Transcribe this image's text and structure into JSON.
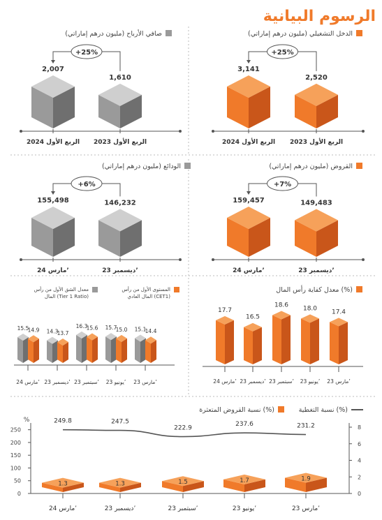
{
  "page_title": "الرسوم البيانية",
  "colors": {
    "orange": "#f07a2a",
    "orange_dark": "#c9561a",
    "orange_top": "#f6a15a",
    "gray": "#9a9a9a",
    "gray_dark": "#6f6f6f",
    "gray_top": "#cfcfcf",
    "title": "#f07a2a",
    "axis": "#555555",
    "line": "#555555"
  },
  "panels": {
    "net_profit": {
      "title": "صافي الأرباح (مليون درهم إماراتي)",
      "change": "+25%",
      "legend_color": "gray",
      "bars": [
        {
          "label": "الربع الأول 2024",
          "value": 2007,
          "value_text": "2,007"
        },
        {
          "label": "الربع الأول 2023",
          "value": 1610,
          "value_text": "1,610"
        }
      ]
    },
    "operating_income": {
      "title": "الدخل التشغيلي (مليون درهم إماراتي)",
      "change": "+25%",
      "legend_color": "orange",
      "bars": [
        {
          "label": "الربع الأول 2024",
          "value": 3141,
          "value_text": "3,141"
        },
        {
          "label": "الربع الأول 2023",
          "value": 2520,
          "value_text": "2,520"
        }
      ]
    },
    "deposits": {
      "title": "الودائع (مليون درهم إماراتي)",
      "change": "+6%",
      "legend_color": "gray",
      "bars": [
        {
          "label": "مارس 24’",
          "value": 155498,
          "value_text": "155,498"
        },
        {
          "label": "ديسمبر 23’",
          "value": 146232,
          "value_text": "146,232"
        }
      ]
    },
    "loans": {
      "title": "القروض (مليون درهم إماراتي)",
      "change": "+7%",
      "legend_color": "orange",
      "bars": [
        {
          "label": "مارس 24’",
          "value": 159457,
          "value_text": "159,457"
        },
        {
          "label": "ديسمبر 23’",
          "value": 149483,
          "value_text": "149,483"
        }
      ]
    },
    "tier1": {
      "legend_cet1": "المستوى الأول من رأس المال العادي (CET1)",
      "legend_tier1": "معدل الشق الأول من رأس المال (Tier 1 Ratio)",
      "categories": [
        "مارس 24’",
        "ديسمبر 23’",
        "سبتمبر 23’",
        "يونيو 23’",
        "مارس 23’"
      ]
    },
    "car": {
      "title": "معدل كفاية رأس المال (%)",
      "categories": [
        "مارس 24’",
        "ديسمبر 23’",
        "سبتمبر 23’",
        "يونيو 23’",
        "مارس 23’"
      ]
    },
    "coverage": {
      "legend_npl": "نسبة القروض المتعثرة (%)",
      "legend_cov": "نسبة التغطية (%)",
      "left_unit": "%",
      "categories": [
        "مارس 24’",
        "ديسمبر 23’",
        "سبتمبر 23’",
        "يونيو 23’",
        "مارس 23’"
      ],
      "left_ticks": [
        "0",
        "50",
        "100",
        "150",
        "200",
        "250"
      ],
      "right_ticks": [
        "0",
        "2",
        "4",
        "6",
        "8"
      ]
    }
  },
  "chart_data": [
    {
      "type": "bar",
      "title": "صافي الأرباح (مليون درهم إماراتي)",
      "categories": [
        "الربع الأول 2024",
        "الربع الأول 2023"
      ],
      "values": [
        2007,
        1610
      ]
    },
    {
      "type": "bar",
      "title": "الدخل التشغيلي (مليون درهم إماراتي)",
      "categories": [
        "الربع الأول 2024",
        "الربع الأول 2023"
      ],
      "values": [
        3141,
        2520
      ]
    },
    {
      "type": "bar",
      "title": "الودائع (مليون درهم إماراتي)",
      "categories": [
        "مارس 24’",
        "ديسمبر 23’"
      ],
      "values": [
        155498,
        146232
      ]
    },
    {
      "type": "bar",
      "title": "القروض (مليون درهم إماراتي)",
      "categories": [
        "مارس 24’",
        "ديسمبر 23’"
      ],
      "values": [
        159457,
        149483
      ]
    },
    {
      "type": "bar",
      "categories": [
        "مارس 24’",
        "ديسمبر 23’",
        "سبتمبر 23’",
        "يونيو 23’",
        "مارس 23’"
      ],
      "series": [
        {
          "name": "معدل الشق الأول من رأس المال (Tier 1 Ratio)",
          "values": [
            15.5,
            14.3,
            16.3,
            15.7,
            15.1
          ]
        },
        {
          "name": "المستوى الأول من رأس المال العادي (CET1)",
          "values": [
            14.9,
            13.7,
            15.6,
            15.0,
            14.4
          ]
        }
      ]
    },
    {
      "type": "bar",
      "title": "معدل كفاية رأس المال (%)",
      "categories": [
        "مارس 24’",
        "ديسمبر 23’",
        "سبتمبر 23’",
        "يونيو 23’",
        "مارس 23’"
      ],
      "values": [
        17.7,
        16.5,
        18.6,
        18.0,
        17.4
      ]
    },
    {
      "type": "bar",
      "categories": [
        "مارس 24’",
        "ديسمبر 23’",
        "سبتمبر 23’",
        "يونيو 23’",
        "مارس 23’"
      ],
      "series": [
        {
          "name": "نسبة التغطية (%)",
          "type": "line",
          "values": [
            249.8,
            247.5,
            222.9,
            237.6,
            231.2
          ]
        },
        {
          "name": "نسبة القروض المتعثرة (%)",
          "type": "bar",
          "values": [
            1.3,
            1.3,
            1.5,
            1.7,
            1.9
          ]
        }
      ],
      "ylim_left": [
        0,
        250
      ],
      "ylim_right": [
        0,
        8
      ]
    }
  ]
}
